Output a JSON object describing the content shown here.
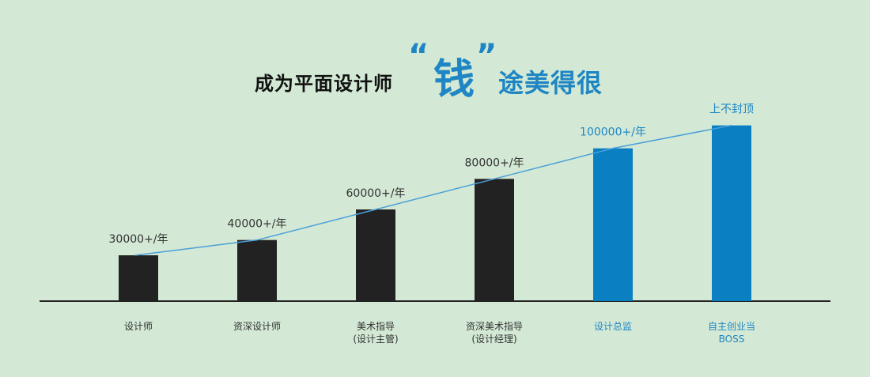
{
  "title": {
    "left": "成为平面设计师",
    "quote_open": "“",
    "highlight": "钱",
    "quote_close": "”",
    "right": "途美得很"
  },
  "colors": {
    "background": "#d3e9d5",
    "bar_dark": "#222222",
    "bar_blue": "#0a7fc1",
    "line": "#4a9fd8",
    "text_dark": "#333333",
    "text_blue": "#1f86c3"
  },
  "chart_data": {
    "type": "bar",
    "categories": [
      [
        "设计师"
      ],
      [
        "资深设计师"
      ],
      [
        "美术指导",
        "(设计主管)"
      ],
      [
        "资深美术指导",
        "(设计经理)"
      ],
      [
        "设计总监"
      ],
      [
        "自主创业当",
        "BOSS"
      ]
    ],
    "values": [
      30000,
      40000,
      60000,
      80000,
      100000,
      115000
    ],
    "value_labels": [
      "30000+/年",
      "40000+/年",
      "60000+/年",
      "80000+/年",
      "100000+/年",
      "上不封顶"
    ],
    "highlight": [
      false,
      false,
      false,
      false,
      true,
      true
    ],
    "trend_line": true,
    "ylim": [
      0,
      120000
    ],
    "grid": false
  }
}
